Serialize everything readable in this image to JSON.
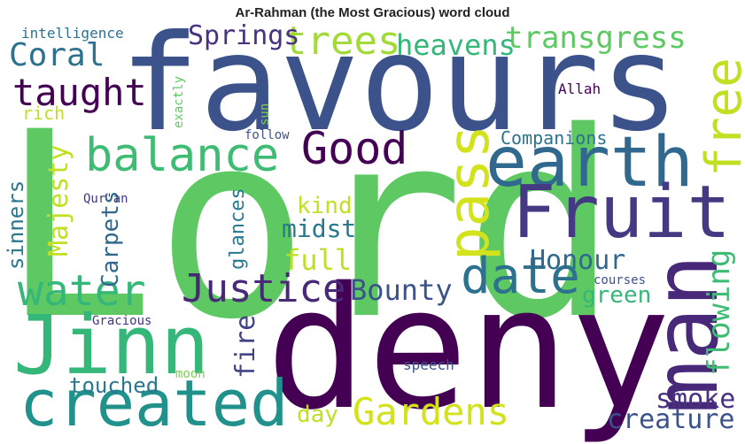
{
  "title": "Ar-Rahman (the Most Gracious) word cloud",
  "words": [
    {
      "text": "Lord",
      "color": "#5ec962"
    },
    {
      "text": "favours",
      "color": "#3b528b"
    },
    {
      "text": "deny",
      "color": "#440154"
    },
    {
      "text": "man",
      "color": "#482878"
    },
    {
      "text": "earth",
      "color": "#31688e"
    },
    {
      "text": "Fruit",
      "color": "#443983"
    },
    {
      "text": "Jinn",
      "color": "#35b779"
    },
    {
      "text": "created",
      "color": "#21918c"
    },
    {
      "text": "pass",
      "color": "#d2e21b"
    },
    {
      "text": "date",
      "color": "#2c728e"
    },
    {
      "text": "water",
      "color": "#35b779"
    },
    {
      "text": "balance",
      "color": "#3fbc73"
    },
    {
      "text": "Good",
      "color": "#440154"
    },
    {
      "text": "free",
      "color": "#c2df23"
    },
    {
      "text": "Gardens",
      "color": "#d2e21b"
    },
    {
      "text": "Justice",
      "color": "#482878"
    },
    {
      "text": "taught",
      "color": "#440154"
    },
    {
      "text": "trees",
      "color": "#a2da37"
    },
    {
      "text": "transgress",
      "color": "#5ec962"
    },
    {
      "text": "Coral",
      "color": "#2c728e"
    },
    {
      "text": "heavens",
      "color": "#35b779"
    },
    {
      "text": "Springs",
      "color": "#46327e"
    },
    {
      "text": "Bounty",
      "color": "#3b528b"
    },
    {
      "text": "Honour",
      "color": "#31688e"
    },
    {
      "text": "smoke",
      "color": "#46327e"
    },
    {
      "text": "creature",
      "color": "#3b528b"
    },
    {
      "text": "flowing",
      "color": "#3fbc73"
    },
    {
      "text": "Majesty",
      "color": "#c2df23"
    },
    {
      "text": "sinners",
      "color": "#2a788e"
    },
    {
      "text": "Carpets",
      "color": "#31688e"
    },
    {
      "text": "fire",
      "color": "#414487"
    },
    {
      "text": "touched",
      "color": "#2a788e"
    },
    {
      "text": "day",
      "color": "#c2df23"
    },
    {
      "text": "full",
      "color": "#bddf26"
    },
    {
      "text": "midst",
      "color": "#2a788e"
    },
    {
      "text": "kind",
      "color": "#c2df23"
    },
    {
      "text": "glances",
      "color": "#2a788e"
    },
    {
      "text": "green",
      "color": "#35b779"
    },
    {
      "text": "Companions",
      "color": "#2c728e"
    },
    {
      "text": "rich",
      "color": "#c2df23"
    },
    {
      "text": "intelligence",
      "color": "#2c728e"
    },
    {
      "text": "exactly",
      "color": "#5ec962"
    },
    {
      "text": "Allah",
      "color": "#440154"
    },
    {
      "text": "follow",
      "color": "#3b528b"
    },
    {
      "text": "Qur'an",
      "color": "#443983"
    },
    {
      "text": "sun",
      "color": "#7ad151"
    },
    {
      "text": "courses",
      "color": "#3b528b"
    },
    {
      "text": "Gracious",
      "color": "#46327e"
    },
    {
      "text": "moon",
      "color": "#7ad151"
    },
    {
      "text": "speech",
      "color": "#3b528b"
    }
  ]
}
